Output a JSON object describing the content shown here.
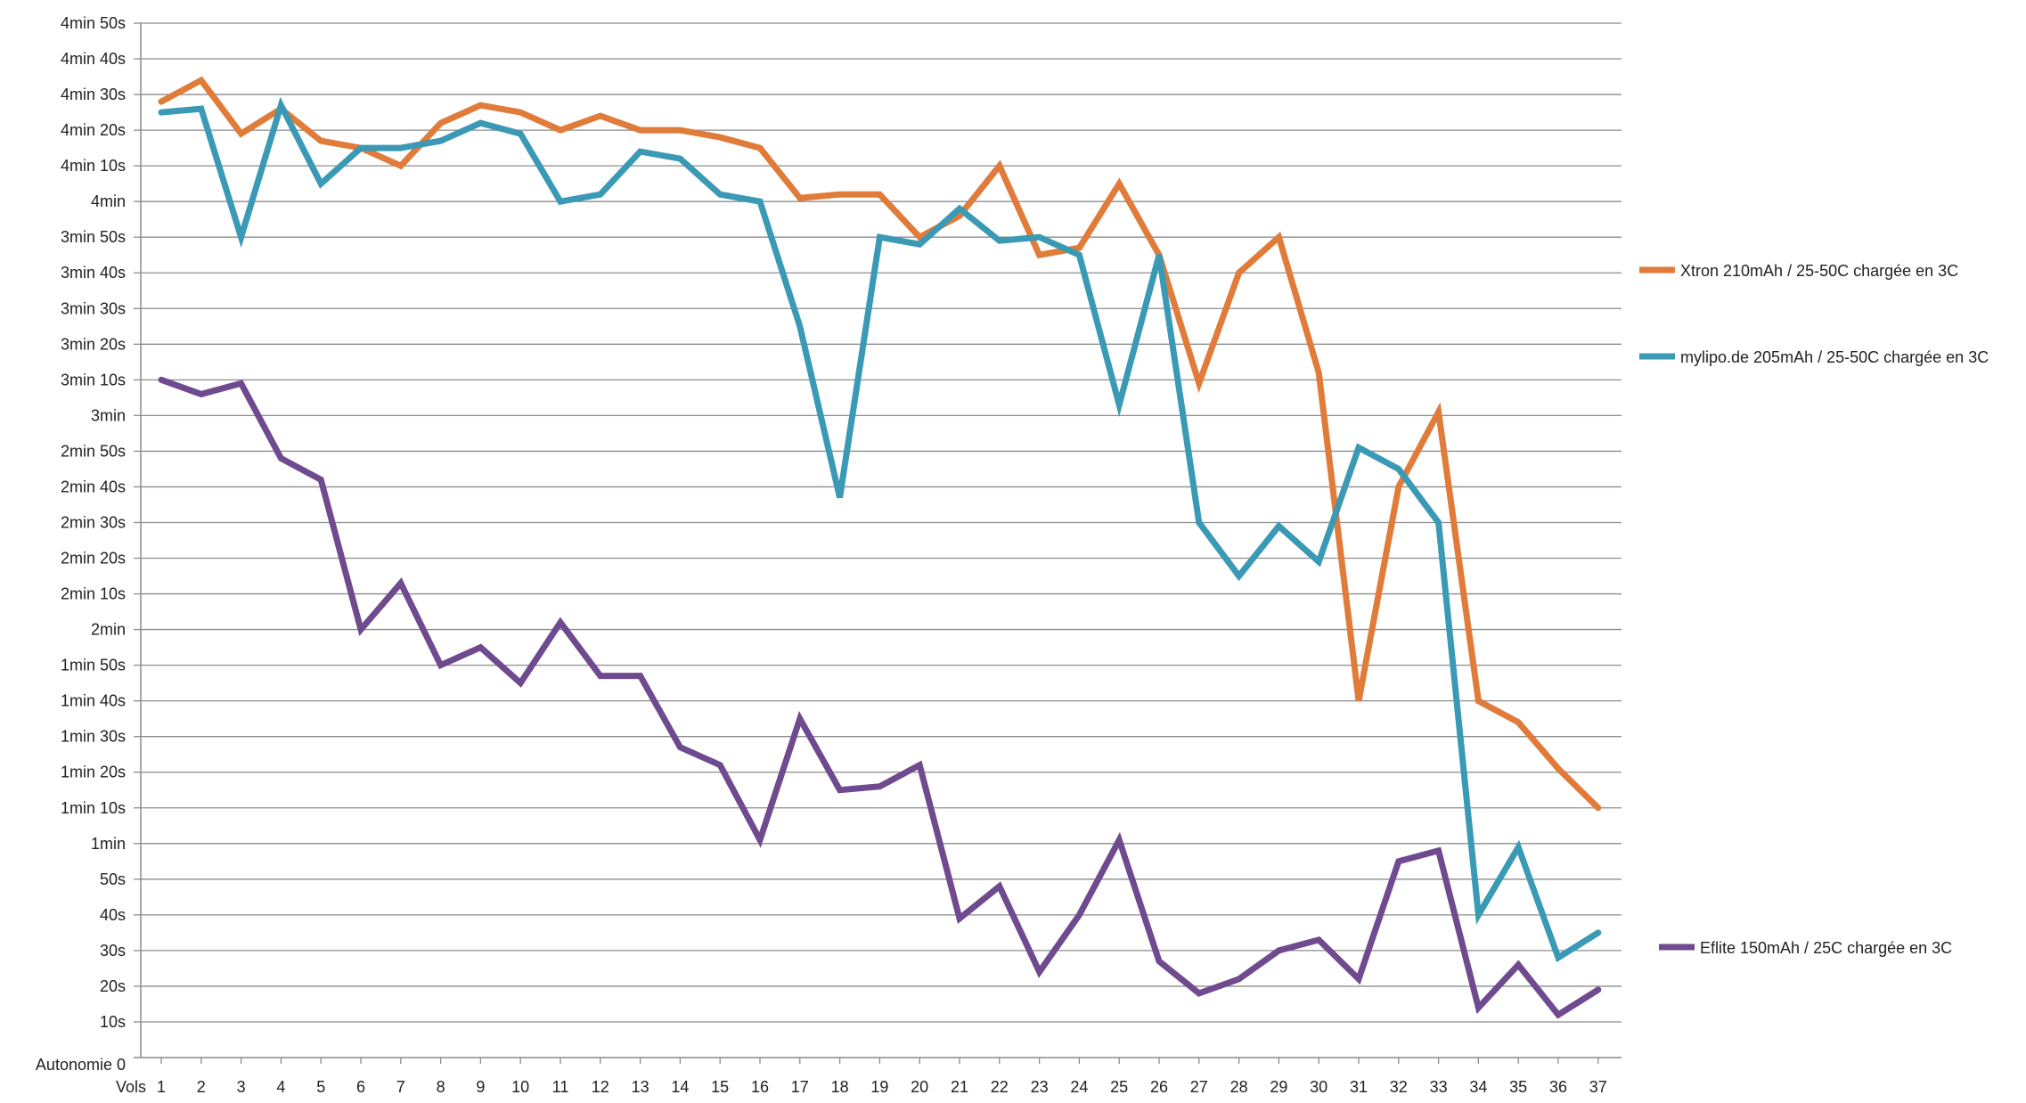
{
  "chart_data": {
    "type": "line",
    "x_unit_label": "Vols",
    "y_zero_label": "Autonomie  0",
    "categories": [
      "1",
      "2",
      "3",
      "4",
      "5",
      "6",
      "7",
      "8",
      "9",
      "10",
      "11",
      "12",
      "13",
      "14",
      "15",
      "16",
      "17",
      "18",
      "19",
      "20",
      "21",
      "22",
      "23",
      "24",
      "25",
      "26",
      "27",
      "28",
      "29",
      "30",
      "31",
      "32",
      "33",
      "34",
      "35",
      "36",
      "37"
    ],
    "y_ticks": [
      {
        "value": 10,
        "label": "10s"
      },
      {
        "value": 20,
        "label": "20s"
      },
      {
        "value": 30,
        "label": "30s"
      },
      {
        "value": 40,
        "label": "40s"
      },
      {
        "value": 50,
        "label": "50s"
      },
      {
        "value": 60,
        "label": "1min"
      },
      {
        "value": 70,
        "label": "1min 10s"
      },
      {
        "value": 80,
        "label": "1min 20s"
      },
      {
        "value": 90,
        "label": "1min 30s"
      },
      {
        "value": 100,
        "label": "1min 40s"
      },
      {
        "value": 110,
        "label": "1min 50s"
      },
      {
        "value": 120,
        "label": "2min"
      },
      {
        "value": 130,
        "label": "2min 10s"
      },
      {
        "value": 140,
        "label": "2min 20s"
      },
      {
        "value": 150,
        "label": "2min 30s"
      },
      {
        "value": 160,
        "label": "2min 40s"
      },
      {
        "value": 170,
        "label": "2min 50s"
      },
      {
        "value": 180,
        "label": "3min"
      },
      {
        "value": 190,
        "label": "3min 10s"
      },
      {
        "value": 200,
        "label": "3min 20s"
      },
      {
        "value": 210,
        "label": "3min 30s"
      },
      {
        "value": 220,
        "label": "3min 40s"
      },
      {
        "value": 230,
        "label": "3min 50s"
      },
      {
        "value": 240,
        "label": "4min"
      },
      {
        "value": 250,
        "label": "4min 10s"
      },
      {
        "value": 260,
        "label": "4min 20s"
      },
      {
        "value": 270,
        "label": "4min 30s"
      },
      {
        "value": 280,
        "label": "4min 40s"
      },
      {
        "value": 290,
        "label": "4min 50s"
      }
    ],
    "ylim": [
      0,
      290
    ],
    "y_unit": "seconds",
    "grid": true,
    "legend_position": "right",
    "series": [
      {
        "name": "Xtron 210mAh / 25-50C chargée en 3C",
        "color": "#E07B39",
        "values": [
          268,
          274,
          259,
          266,
          257,
          255,
          250,
          262,
          267,
          265,
          260,
          264,
          260,
          260,
          258,
          255,
          241,
          242,
          242,
          230,
          236,
          250,
          225,
          227,
          245,
          225,
          189,
          220,
          230,
          192,
          100,
          160,
          181,
          100,
          94,
          81,
          70
        ]
      },
      {
        "name": "mylipo.de 205mAh / 25-50C chargée en 3C",
        "color": "#3A9AB5",
        "values": [
          265,
          266,
          230,
          267,
          245,
          255,
          255,
          257,
          262,
          259,
          240,
          242,
          254,
          252,
          242,
          240,
          205,
          157,
          230,
          228,
          238,
          229,
          230,
          225,
          183,
          225,
          150,
          135,
          149,
          139,
          171,
          165,
          150,
          40,
          59,
          28,
          35
        ]
      },
      {
        "name": "Eflite 150mAh / 25C chargée en 3C",
        "color": "#6F4A8E",
        "values": [
          190,
          186,
          189,
          168,
          162,
          120,
          133,
          110,
          115,
          105,
          122,
          107,
          107,
          87,
          82,
          61,
          95,
          75,
          76,
          82,
          39,
          48,
          24,
          40,
          61,
          27,
          18,
          22,
          30,
          33,
          22,
          55,
          58,
          14,
          26,
          12,
          19
        ]
      }
    ]
  }
}
